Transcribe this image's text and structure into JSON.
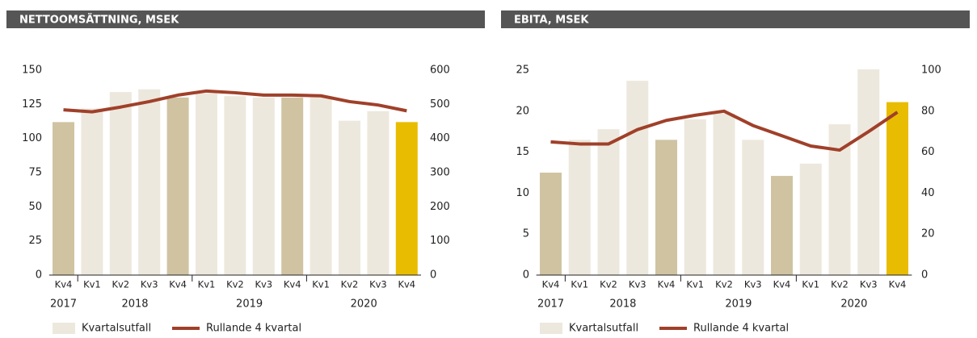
{
  "chart_data": [
    {
      "type": "bar",
      "title": "NETTOOMSÄTTNING, MSEK",
      "categories": [
        "Kv4",
        "Kv1",
        "Kv2",
        "Kv3",
        "Kv4",
        "Kv1",
        "Kv2",
        "Kv3",
        "Kv4",
        "Kv1",
        "Kv2",
        "Kv3",
        "Kv4"
      ],
      "years": [
        "2017",
        "2018",
        "2019",
        "2020"
      ],
      "series": [
        {
          "name": "Kvartalsutfall",
          "color": "#ede8dd",
          "colors": [
            "#cfc3a2",
            "#ede8dd",
            "#ede8dd",
            "#ede8dd",
            "#cfc3a2",
            "#ede8dd",
            "#ede8dd",
            "#ede8dd",
            "#cfc3a2",
            "#ede8dd",
            "#ede8dd",
            "#ede8dd",
            "#e8bc00"
          ],
          "values": [
            112,
            122,
            134,
            136,
            130,
            133,
            131,
            130,
            130,
            131,
            113,
            120,
            112
          ]
        },
        {
          "name": "Rullande 4 kvartal",
          "type": "line",
          "axis": "y2",
          "color": "#a0402a",
          "values": [
            484,
            478,
            492,
            508,
            527,
            539,
            534,
            527,
            527,
            525,
            508,
            498,
            481
          ]
        }
      ],
      "ylim": [
        0,
        150
      ],
      "yticks": [
        0,
        25,
        50,
        75,
        100,
        125,
        150
      ],
      "y2lim": [
        0,
        600
      ],
      "y2ticks": [
        0,
        100,
        200,
        300,
        400,
        500,
        600
      ]
    },
    {
      "type": "bar",
      "title": "EBITA, MSEK",
      "categories": [
        "Kv4",
        "Kv1",
        "Kv2",
        "Kv3",
        "Kv4",
        "Kv1",
        "Kv2",
        "Kv3",
        "Kv4",
        "Kv1",
        "Kv2",
        "Kv3",
        "Kv4"
      ],
      "years": [
        "2017",
        "2018",
        "2019",
        "2020"
      ],
      "series": [
        {
          "name": "Kvartalsutfall",
          "color": "#ede8dd",
          "colors": [
            "#cfc3a2",
            "#ede8dd",
            "#ede8dd",
            "#ede8dd",
            "#cfc3a2",
            "#ede8dd",
            "#ede8dd",
            "#ede8dd",
            "#cfc3a2",
            "#ede8dd",
            "#ede8dd",
            "#ede8dd",
            "#e8bc00"
          ],
          "values": [
            12.5,
            16.5,
            17.8,
            23.7,
            16.5,
            19.0,
            19.7,
            16.5,
            12.1,
            13.6,
            18.4,
            25.1,
            21.1
          ]
        },
        {
          "name": "Rullande 4 kvartal",
          "type": "line",
          "axis": "y2",
          "color": "#a0402a",
          "values": [
            65,
            64,
            64,
            71,
            75.5,
            78,
            80,
            73,
            68,
            63,
            61,
            70,
            79.5
          ]
        }
      ],
      "ylim": [
        0,
        25
      ],
      "yticks": [
        0,
        5,
        10,
        15,
        20,
        25
      ],
      "y2lim": [
        0,
        100
      ],
      "y2ticks": [
        0,
        20,
        40,
        60,
        80,
        100
      ]
    }
  ]
}
